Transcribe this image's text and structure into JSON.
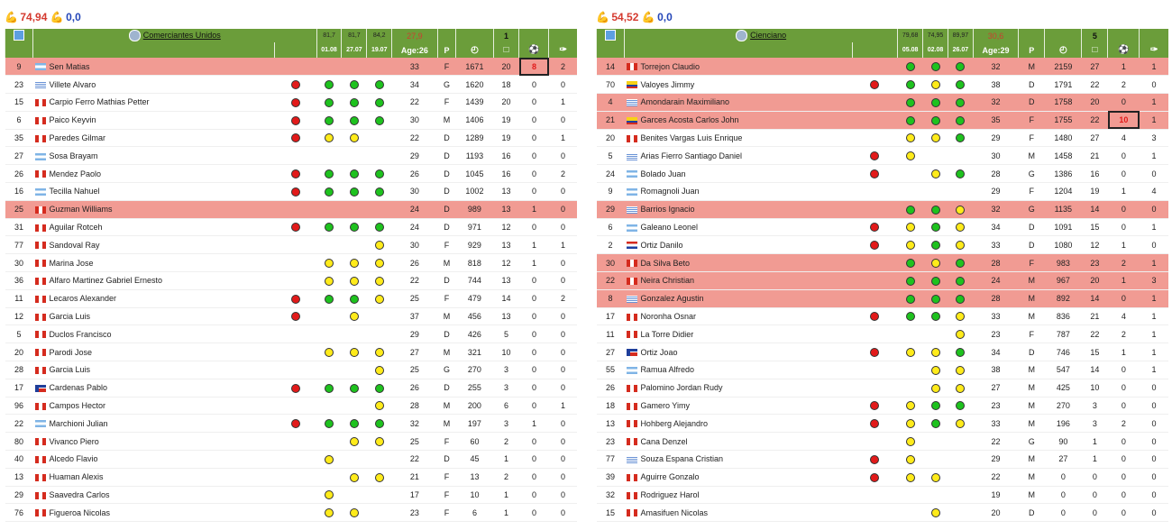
{
  "left": {
    "summary": {
      "icon1": "muscle-icon",
      "value1": "74,94",
      "icon2": "muscle-icon",
      "value2": "0,0"
    },
    "header": {
      "team": "Comerciantes Unidos",
      "form": [
        {
          "top": "81,7",
          "date": "01.08"
        },
        {
          "top": "81,7",
          "date": "27.07"
        },
        {
          "top": "84,2",
          "date": "19.07"
        }
      ],
      "avg": "27,9",
      "age": "Age:26",
      "pos": "P",
      "col1": "1"
    },
    "rows": [
      {
        "num": "9",
        "flag": "ar",
        "name": "Sen Matias",
        "d": "",
        "f": [
          "",
          "",
          ""
        ],
        "age": "33",
        "pos": "F",
        "min": "1671",
        "gp": "20",
        "g": "8",
        "a": "2",
        "hl": true,
        "box": "g"
      },
      {
        "num": "23",
        "flag": "uy",
        "name": "Villete Alvaro",
        "d": "r",
        "f": [
          "g",
          "g",
          "g"
        ],
        "age": "34",
        "pos": "G",
        "min": "1620",
        "gp": "18",
        "g": "0",
        "a": "0"
      },
      {
        "num": "15",
        "flag": "pe",
        "name": "Carpio Ferro Mathias Petter",
        "d": "r",
        "f": [
          "g",
          "g",
          "g"
        ],
        "age": "22",
        "pos": "F",
        "min": "1439",
        "gp": "20",
        "g": "0",
        "a": "1"
      },
      {
        "num": "6",
        "flag": "pe",
        "name": "Paico Keyvin",
        "d": "r",
        "f": [
          "g",
          "g",
          "g"
        ],
        "age": "30",
        "pos": "M",
        "min": "1406",
        "gp": "19",
        "g": "0",
        "a": "0"
      },
      {
        "num": "35",
        "flag": "pe",
        "name": "Paredes Gilmar",
        "d": "r",
        "f": [
          "y",
          "y",
          ""
        ],
        "age": "22",
        "pos": "D",
        "min": "1289",
        "gp": "19",
        "g": "0",
        "a": "1"
      },
      {
        "num": "27",
        "flag": "ar",
        "name": "Sosa Brayam",
        "d": "",
        "f": [
          "",
          "",
          ""
        ],
        "age": "29",
        "pos": "D",
        "min": "1193",
        "gp": "16",
        "g": "0",
        "a": "0"
      },
      {
        "num": "26",
        "flag": "pe",
        "name": "Mendez Paolo",
        "d": "r",
        "f": [
          "g",
          "g",
          "g"
        ],
        "age": "26",
        "pos": "D",
        "min": "1045",
        "gp": "16",
        "g": "0",
        "a": "2"
      },
      {
        "num": "16",
        "flag": "ar",
        "name": "Tecilla Nahuel",
        "d": "r",
        "f": [
          "g",
          "g",
          "g"
        ],
        "age": "30",
        "pos": "D",
        "min": "1002",
        "gp": "13",
        "g": "0",
        "a": "0"
      },
      {
        "num": "25",
        "flag": "pe",
        "name": "Guzman Williams",
        "d": "",
        "f": [
          "",
          "",
          ""
        ],
        "age": "24",
        "pos": "D",
        "min": "989",
        "gp": "13",
        "g": "1",
        "a": "0",
        "hl": true
      },
      {
        "num": "31",
        "flag": "pe",
        "name": "Aguilar Rotceh",
        "d": "r",
        "f": [
          "g",
          "g",
          "g"
        ],
        "age": "24",
        "pos": "D",
        "min": "971",
        "gp": "12",
        "g": "0",
        "a": "0"
      },
      {
        "num": "77",
        "flag": "pe",
        "name": "Sandoval Ray",
        "d": "",
        "f": [
          "",
          "",
          "y"
        ],
        "age": "30",
        "pos": "F",
        "min": "929",
        "gp": "13",
        "g": "1",
        "a": "1"
      },
      {
        "num": "30",
        "flag": "pe",
        "name": "Marina Jose",
        "d": "",
        "f": [
          "y",
          "y",
          "y"
        ],
        "age": "26",
        "pos": "M",
        "min": "818",
        "gp": "12",
        "g": "1",
        "a": "0"
      },
      {
        "num": "36",
        "flag": "pe",
        "name": "Alfaro Martinez Gabriel Ernesto",
        "d": "",
        "f": [
          "y",
          "y",
          "y"
        ],
        "age": "22",
        "pos": "D",
        "min": "744",
        "gp": "13",
        "g": "0",
        "a": "0"
      },
      {
        "num": "11",
        "flag": "pe",
        "name": "Lecaros Alexander",
        "d": "r",
        "f": [
          "g",
          "g",
          "y"
        ],
        "age": "25",
        "pos": "F",
        "min": "479",
        "gp": "14",
        "g": "0",
        "a": "2"
      },
      {
        "num": "12",
        "flag": "pe",
        "name": "Garcia Luis",
        "d": "r",
        "f": [
          "",
          "y",
          ""
        ],
        "age": "37",
        "pos": "M",
        "min": "456",
        "gp": "13",
        "g": "0",
        "a": "0"
      },
      {
        "num": "5",
        "flag": "pe",
        "name": "Duclos Francisco",
        "d": "",
        "f": [
          "",
          "",
          ""
        ],
        "age": "29",
        "pos": "D",
        "min": "426",
        "gp": "5",
        "g": "0",
        "a": "0"
      },
      {
        "num": "20",
        "flag": "pe",
        "name": "Parodi Jose",
        "d": "",
        "f": [
          "y",
          "y",
          "y"
        ],
        "age": "27",
        "pos": "M",
        "min": "321",
        "gp": "10",
        "g": "0",
        "a": "0"
      },
      {
        "num": "28",
        "flag": "pe",
        "name": "Garcia Luis",
        "d": "",
        "f": [
          "",
          "",
          "y"
        ],
        "age": "25",
        "pos": "G",
        "min": "270",
        "gp": "3",
        "g": "0",
        "a": "0"
      },
      {
        "num": "17",
        "flag": "cl",
        "name": "Cardenas Pablo",
        "d": "r",
        "f": [
          "g",
          "g",
          "g"
        ],
        "age": "26",
        "pos": "D",
        "min": "255",
        "gp": "3",
        "g": "0",
        "a": "0"
      },
      {
        "num": "96",
        "flag": "pe",
        "name": "Campos Hector",
        "d": "",
        "f": [
          "",
          "",
          "y"
        ],
        "age": "28",
        "pos": "M",
        "min": "200",
        "gp": "6",
        "g": "0",
        "a": "1"
      },
      {
        "num": "22",
        "flag": "ar",
        "name": "Marchioni Julian",
        "d": "r",
        "f": [
          "g",
          "g",
          "g"
        ],
        "age": "32",
        "pos": "M",
        "min": "197",
        "gp": "3",
        "g": "1",
        "a": "0"
      },
      {
        "num": "80",
        "flag": "pe",
        "name": "Vivanco Piero",
        "d": "",
        "f": [
          "",
          "y",
          "y"
        ],
        "age": "25",
        "pos": "F",
        "min": "60",
        "gp": "2",
        "g": "0",
        "a": "0"
      },
      {
        "num": "40",
        "flag": "pe",
        "name": "Alcedo Flavio",
        "d": "",
        "f": [
          "y",
          "",
          ""
        ],
        "age": "22",
        "pos": "D",
        "min": "45",
        "gp": "1",
        "g": "0",
        "a": "0"
      },
      {
        "num": "13",
        "flag": "pe",
        "name": "Huaman Alexis",
        "d": "",
        "f": [
          "",
          "y",
          "y"
        ],
        "age": "21",
        "pos": "F",
        "min": "13",
        "gp": "2",
        "g": "0",
        "a": "0"
      },
      {
        "num": "29",
        "flag": "pe",
        "name": "Saavedra Carlos",
        "d": "",
        "f": [
          "y",
          "",
          ""
        ],
        "age": "17",
        "pos": "F",
        "min": "10",
        "gp": "1",
        "g": "0",
        "a": "0"
      },
      {
        "num": "76",
        "flag": "pe",
        "name": "Figueroa Nicolas",
        "d": "",
        "f": [
          "y",
          "y",
          ""
        ],
        "age": "23",
        "pos": "F",
        "min": "6",
        "gp": "1",
        "g": "0",
        "a": "0"
      }
    ]
  },
  "right": {
    "summary": {
      "icon1": "muscle-icon",
      "value1": "54,52",
      "icon2": "muscle-icon",
      "value2": "0,0"
    },
    "header": {
      "team": "Cienciano",
      "form": [
        {
          "top": "79,68",
          "date": "05.08"
        },
        {
          "top": "74,95",
          "date": "02.08"
        },
        {
          "top": "89,97",
          "date": "26.07"
        }
      ],
      "avg": "30,6",
      "age": "Age:29",
      "pos": "P",
      "col1": "5"
    },
    "rows": [
      {
        "num": "14",
        "flag": "pe",
        "name": "Torrejon Claudio",
        "d": "",
        "f": [
          "g",
          "g",
          "g"
        ],
        "age": "32",
        "pos": "M",
        "min": "2159",
        "gp": "27",
        "g": "1",
        "a": "1",
        "hl": true
      },
      {
        "num": "70",
        "flag": "co",
        "name": "Valoyes Jimmy",
        "d": "r",
        "f": [
          "g",
          "y",
          "g"
        ],
        "age": "38",
        "pos": "D",
        "min": "1791",
        "gp": "22",
        "g": "2",
        "a": "0"
      },
      {
        "num": "4",
        "flag": "uy",
        "name": "Amondarain Maximiliano",
        "d": "",
        "f": [
          "g",
          "g",
          "g"
        ],
        "age": "32",
        "pos": "D",
        "min": "1758",
        "gp": "20",
        "g": "0",
        "a": "1",
        "hl": true
      },
      {
        "num": "21",
        "flag": "ec",
        "name": "Garces Acosta Carlos John",
        "d": "",
        "f": [
          "g",
          "g",
          "g"
        ],
        "age": "35",
        "pos": "F",
        "min": "1755",
        "gp": "22",
        "g": "10",
        "a": "1",
        "hl": true,
        "box": "g"
      },
      {
        "num": "20",
        "flag": "pe",
        "name": "Benites Vargas Luis Enrique",
        "d": "",
        "f": [
          "y",
          "y",
          "g"
        ],
        "age": "29",
        "pos": "F",
        "min": "1480",
        "gp": "27",
        "g": "4",
        "a": "3"
      },
      {
        "num": "5",
        "flag": "uy",
        "name": "Arias Fierro Santiago Daniel",
        "d": "r",
        "f": [
          "y",
          "",
          ""
        ],
        "age": "30",
        "pos": "M",
        "min": "1458",
        "gp": "21",
        "g": "0",
        "a": "1"
      },
      {
        "num": "24",
        "flag": "ar",
        "name": "Bolado Juan",
        "d": "r",
        "f": [
          "",
          "y",
          "g"
        ],
        "age": "28",
        "pos": "G",
        "min": "1386",
        "gp": "16",
        "g": "0",
        "a": "0"
      },
      {
        "num": "9",
        "flag": "ar",
        "name": "Romagnoli Juan",
        "d": "",
        "f": [
          "",
          "",
          ""
        ],
        "age": "29",
        "pos": "F",
        "min": "1204",
        "gp": "19",
        "g": "1",
        "a": "4"
      },
      {
        "num": "29",
        "flag": "uy",
        "name": "Barrios Ignacio",
        "d": "",
        "f": [
          "g",
          "g",
          "y"
        ],
        "age": "32",
        "pos": "G",
        "min": "1135",
        "gp": "14",
        "g": "0",
        "a": "0",
        "hl": true
      },
      {
        "num": "6",
        "flag": "ar",
        "name": "Galeano Leonel",
        "d": "r",
        "f": [
          "y",
          "g",
          "y"
        ],
        "age": "34",
        "pos": "D",
        "min": "1091",
        "gp": "15",
        "g": "0",
        "a": "1"
      },
      {
        "num": "2",
        "flag": "py",
        "name": "Ortiz Danilo",
        "d": "r",
        "f": [
          "y",
          "g",
          "y"
        ],
        "age": "33",
        "pos": "D",
        "min": "1080",
        "gp": "12",
        "g": "1",
        "a": "0"
      },
      {
        "num": "30",
        "flag": "pe",
        "name": "Da Silva Beto",
        "d": "",
        "f": [
          "g",
          "y",
          "g"
        ],
        "age": "28",
        "pos": "F",
        "min": "983",
        "gp": "23",
        "g": "2",
        "a": "1",
        "hl": true
      },
      {
        "num": "22",
        "flag": "pe",
        "name": "Neira Christian",
        "d": "",
        "f": [
          "g",
          "g",
          "g"
        ],
        "age": "24",
        "pos": "M",
        "min": "967",
        "gp": "20",
        "g": "1",
        "a": "3",
        "hl": true
      },
      {
        "num": "8",
        "flag": "uy",
        "name": "Gonzalez Agustin",
        "d": "",
        "f": [
          "g",
          "g",
          "g"
        ],
        "age": "28",
        "pos": "M",
        "min": "892",
        "gp": "14",
        "g": "0",
        "a": "1",
        "hl": true
      },
      {
        "num": "17",
        "flag": "pe",
        "name": "Noronha Osnar",
        "d": "r",
        "f": [
          "g",
          "g",
          "y"
        ],
        "age": "33",
        "pos": "M",
        "min": "836",
        "gp": "21",
        "g": "4",
        "a": "1"
      },
      {
        "num": "11",
        "flag": "pe",
        "name": "La Torre Didier",
        "d": "",
        "f": [
          "",
          "",
          "y"
        ],
        "age": "23",
        "pos": "F",
        "min": "787",
        "gp": "22",
        "g": "2",
        "a": "1"
      },
      {
        "num": "27",
        "flag": "cl",
        "name": "Ortiz Joao",
        "d": "r",
        "f": [
          "y",
          "y",
          "g"
        ],
        "age": "34",
        "pos": "D",
        "min": "746",
        "gp": "15",
        "g": "1",
        "a": "1"
      },
      {
        "num": "55",
        "flag": "ar",
        "name": "Ramua Alfredo",
        "d": "",
        "f": [
          "",
          "y",
          "y"
        ],
        "age": "38",
        "pos": "M",
        "min": "547",
        "gp": "14",
        "g": "0",
        "a": "1"
      },
      {
        "num": "26",
        "flag": "pe",
        "name": "Palomino Jordan Rudy",
        "d": "",
        "f": [
          "",
          "y",
          "y"
        ],
        "age": "27",
        "pos": "M",
        "min": "425",
        "gp": "10",
        "g": "0",
        "a": "0"
      },
      {
        "num": "18",
        "flag": "pe",
        "name": "Gamero Yimy",
        "d": "r",
        "f": [
          "y",
          "g",
          "g"
        ],
        "age": "23",
        "pos": "M",
        "min": "270",
        "gp": "3",
        "g": "0",
        "a": "0"
      },
      {
        "num": "13",
        "flag": "pe",
        "name": "Hohberg Alejandro",
        "d": "r",
        "f": [
          "y",
          "g",
          "y"
        ],
        "age": "33",
        "pos": "M",
        "min": "196",
        "gp": "3",
        "g": "2",
        "a": "0"
      },
      {
        "num": "23",
        "flag": "pe",
        "name": "Cana Denzel",
        "d": "",
        "f": [
          "y",
          "",
          ""
        ],
        "age": "22",
        "pos": "G",
        "min": "90",
        "gp": "1",
        "g": "0",
        "a": "0"
      },
      {
        "num": "77",
        "flag": "uy",
        "name": "Souza Espana Cristian",
        "d": "r",
        "f": [
          "y",
          "",
          ""
        ],
        "age": "29",
        "pos": "M",
        "min": "27",
        "gp": "1",
        "g": "0",
        "a": "0"
      },
      {
        "num": "39",
        "flag": "pe",
        "name": "Aguirre Gonzalo",
        "d": "r",
        "f": [
          "y",
          "y",
          ""
        ],
        "age": "22",
        "pos": "M",
        "min": "0",
        "gp": "0",
        "g": "0",
        "a": "0"
      },
      {
        "num": "32",
        "flag": "pe",
        "name": "Rodriguez Harol",
        "d": "",
        "f": [
          "",
          "",
          ""
        ],
        "age": "19",
        "pos": "M",
        "min": "0",
        "gp": "0",
        "g": "0",
        "a": "0"
      },
      {
        "num": "15",
        "flag": "pe",
        "name": "Amasifuen Nicolas",
        "d": "",
        "f": [
          "",
          "y",
          ""
        ],
        "age": "20",
        "pos": "D",
        "min": "0",
        "gp": "0",
        "g": "0",
        "a": "0"
      }
    ]
  }
}
